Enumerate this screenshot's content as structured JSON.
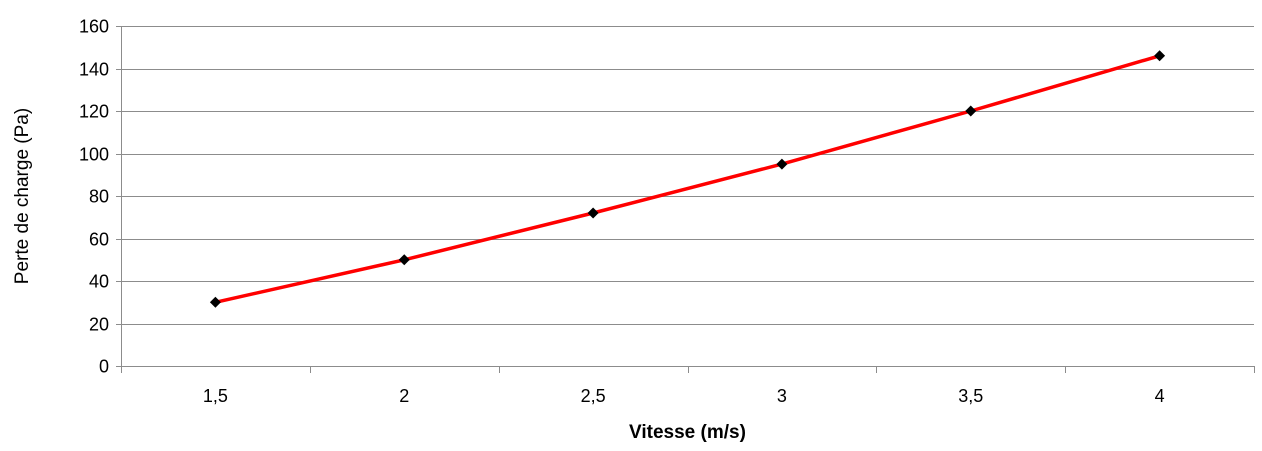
{
  "chart_data": {
    "type": "line",
    "title": "",
    "xlabel": "Vitesse (m/s)",
    "ylabel": "Perte de charge (Pa)",
    "categories": [
      "1,5",
      "2",
      "2,5",
      "3",
      "3,5",
      "4"
    ],
    "x": [
      1.5,
      2,
      2.5,
      3,
      3.5,
      4
    ],
    "series": [
      {
        "values": [
          30,
          50,
          72,
          95,
          120,
          146
        ]
      }
    ],
    "ylim": [
      0,
      160
    ],
    "yticks": [
      0,
      20,
      40,
      60,
      80,
      100,
      120,
      140,
      160
    ],
    "grid": "horizontal",
    "legend": "none",
    "colors": {
      "line": "#ff0000",
      "marker": "#000000",
      "grid": "#8c8c8c",
      "axis": "#8c8c8c",
      "background": "#ffffff"
    },
    "marker": "diamond"
  }
}
